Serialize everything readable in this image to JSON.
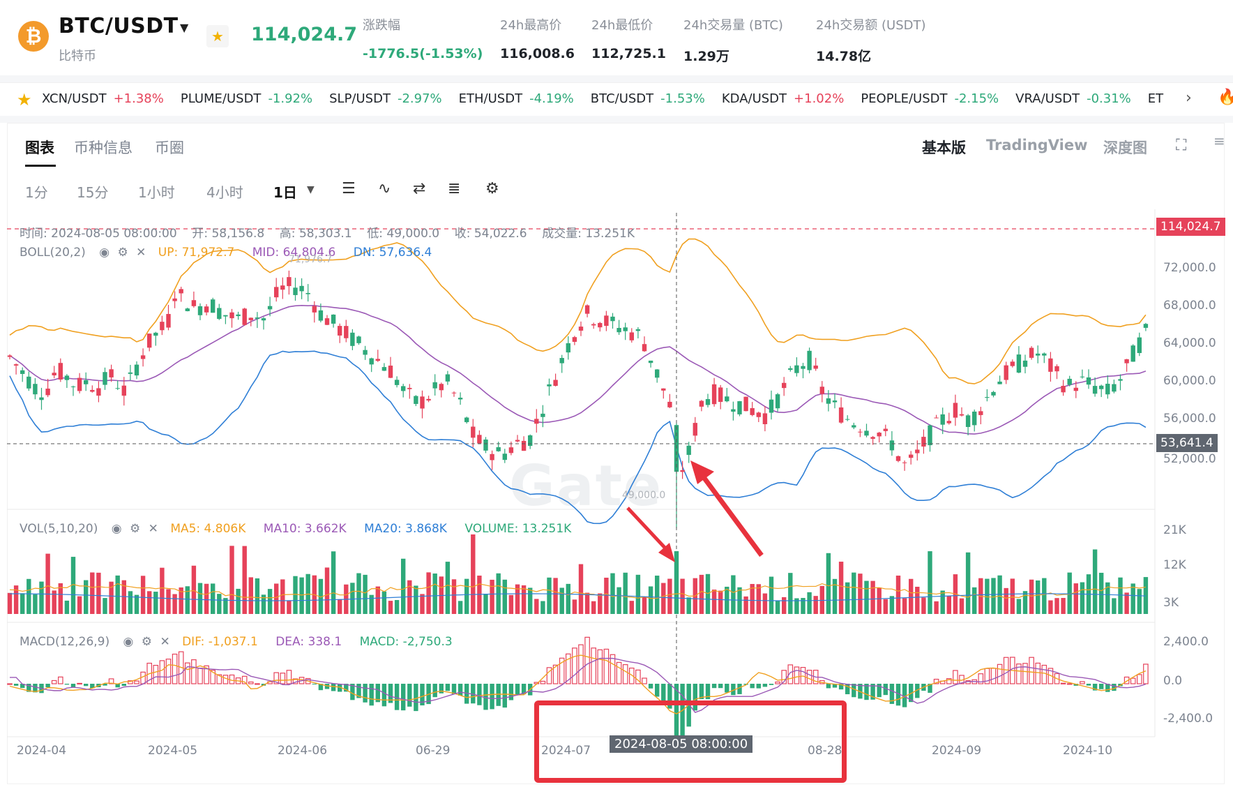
{
  "header": {
    "logo_symbol": "₿",
    "pair": "BTC/USDT",
    "pair_caret": "▼",
    "pair_cn": "比特币",
    "fav_icon": "star-icon",
    "fav_glyph": "★",
    "last_price": "114,024.7",
    "stats": [
      {
        "label": "涨跌幅",
        "value": "-1776.5(-1.53%)",
        "green": true
      },
      {
        "label": "24h最高价",
        "value": "116,008.6",
        "green": false
      },
      {
        "label": "24h最低价",
        "value": "112,725.1",
        "green": false
      },
      {
        "label": "24h交易量 (BTC)",
        "value": "1.29万",
        "green": false
      },
      {
        "label": "24h交易额 (USDT)",
        "value": "14.78亿",
        "green": false
      }
    ]
  },
  "ticker": {
    "star_glyph": "★",
    "items": [
      {
        "sym": "XCN/USDT",
        "chg": "+1.38%",
        "dir": "up"
      },
      {
        "sym": "PLUME/USDT",
        "chg": "-1.92%",
        "dir": "down"
      },
      {
        "sym": "SLP/USDT",
        "chg": "-2.97%",
        "dir": "down"
      },
      {
        "sym": "ETH/USDT",
        "chg": "-4.19%",
        "dir": "down"
      },
      {
        "sym": "BTC/USDT",
        "chg": "-1.53%",
        "dir": "down"
      },
      {
        "sym": "KDA/USDT",
        "chg": "+1.02%",
        "dir": "up"
      },
      {
        "sym": "PEOPLE/USDT",
        "chg": "-2.15%",
        "dir": "down"
      },
      {
        "sym": "VRA/USDT",
        "chg": "-0.31%",
        "dir": "down"
      },
      {
        "sym": "ET",
        "chg": "",
        "dir": "down"
      }
    ],
    "next_glyph": "›",
    "hot_glyph": "🔥"
  },
  "tabs": {
    "left": [
      "图表",
      "币种信息",
      "币圈"
    ],
    "right": [
      "基本版",
      "TradingView",
      "深度图"
    ],
    "fullscreen_glyph": "⛶",
    "menu_glyph": "≡"
  },
  "intervals": [
    "1分",
    "15分",
    "1小时",
    "4小时",
    "1日"
  ],
  "interval_caret": "▼",
  "tools": [
    {
      "name": "candle-type-icon",
      "glyph": "☰"
    },
    {
      "name": "indicator-icon",
      "glyph": "∿"
    },
    {
      "name": "swap-icon",
      "glyph": "⇄"
    },
    {
      "name": "list-icon",
      "glyph": "≣"
    },
    {
      "name": "settings-icon",
      "glyph": "⚙"
    }
  ],
  "ohlc_line": {
    "time_label": "时间:",
    "time": "2024-08-05 08:00:00",
    "open_label": "开:",
    "open": "58,156.8",
    "high_label": "高:",
    "high": "58,303.1",
    "low_label": "低:",
    "low": "49,000.0",
    "close_label": "收:",
    "close": "54,022.6",
    "vol_label": "成交量:",
    "vol": "13.251K"
  },
  "boll": {
    "name": "BOLL(20,2)",
    "up": "UP: 71,972.7",
    "mid": "MID: 64,804.6",
    "dn": "DN: 57,636.4",
    "color_up": "#f0a020",
    "color_mid": "#9b59b6",
    "color_dn": "#2f7fd6"
  },
  "vol": {
    "name": "VOL(5,10,20)",
    "ma5": "MA5: 4.806K",
    "ma10": "MA10: 3.662K",
    "ma20": "MA20: 3.868K",
    "volume": "VOLUME: 13.251K"
  },
  "macd": {
    "name": "MACD(12,26,9)",
    "dif": "DIF: -1,037.1",
    "dea": "DEA: 338.1",
    "macd": "MACD: -2,750.3"
  },
  "price_axis": [
    "72,000.0",
    "68,000.0",
    "64,000.0",
    "60,000.0",
    "56,000.0",
    "52,000.0"
  ],
  "vol_axis": [
    "21K",
    "12K",
    "3K"
  ],
  "macd_axis": [
    "2,400.0",
    "0.0",
    "-2,400.0"
  ],
  "time_axis": [
    "2024-04",
    "2024-05",
    "2024-06",
    "06-29",
    "2024-07",
    "08-28",
    "2024-09",
    "2024-10"
  ],
  "current_price_tag": "114,024.7",
  "cross_price_tag": "53,641.4",
  "crosshair_time": "2024-08-05 08:00:00",
  "low_marker": "49,000.0",
  "high_marker": "71,976.7",
  "watermark": "Gate",
  "colors": {
    "up": "#e6425a",
    "down": "#2ea97a",
    "annotation": "#e8323d"
  },
  "chart_data": {
    "type": "candlestick",
    "interval": "1日",
    "y_range": [
      50000,
      76000
    ],
    "candles": []
  }
}
